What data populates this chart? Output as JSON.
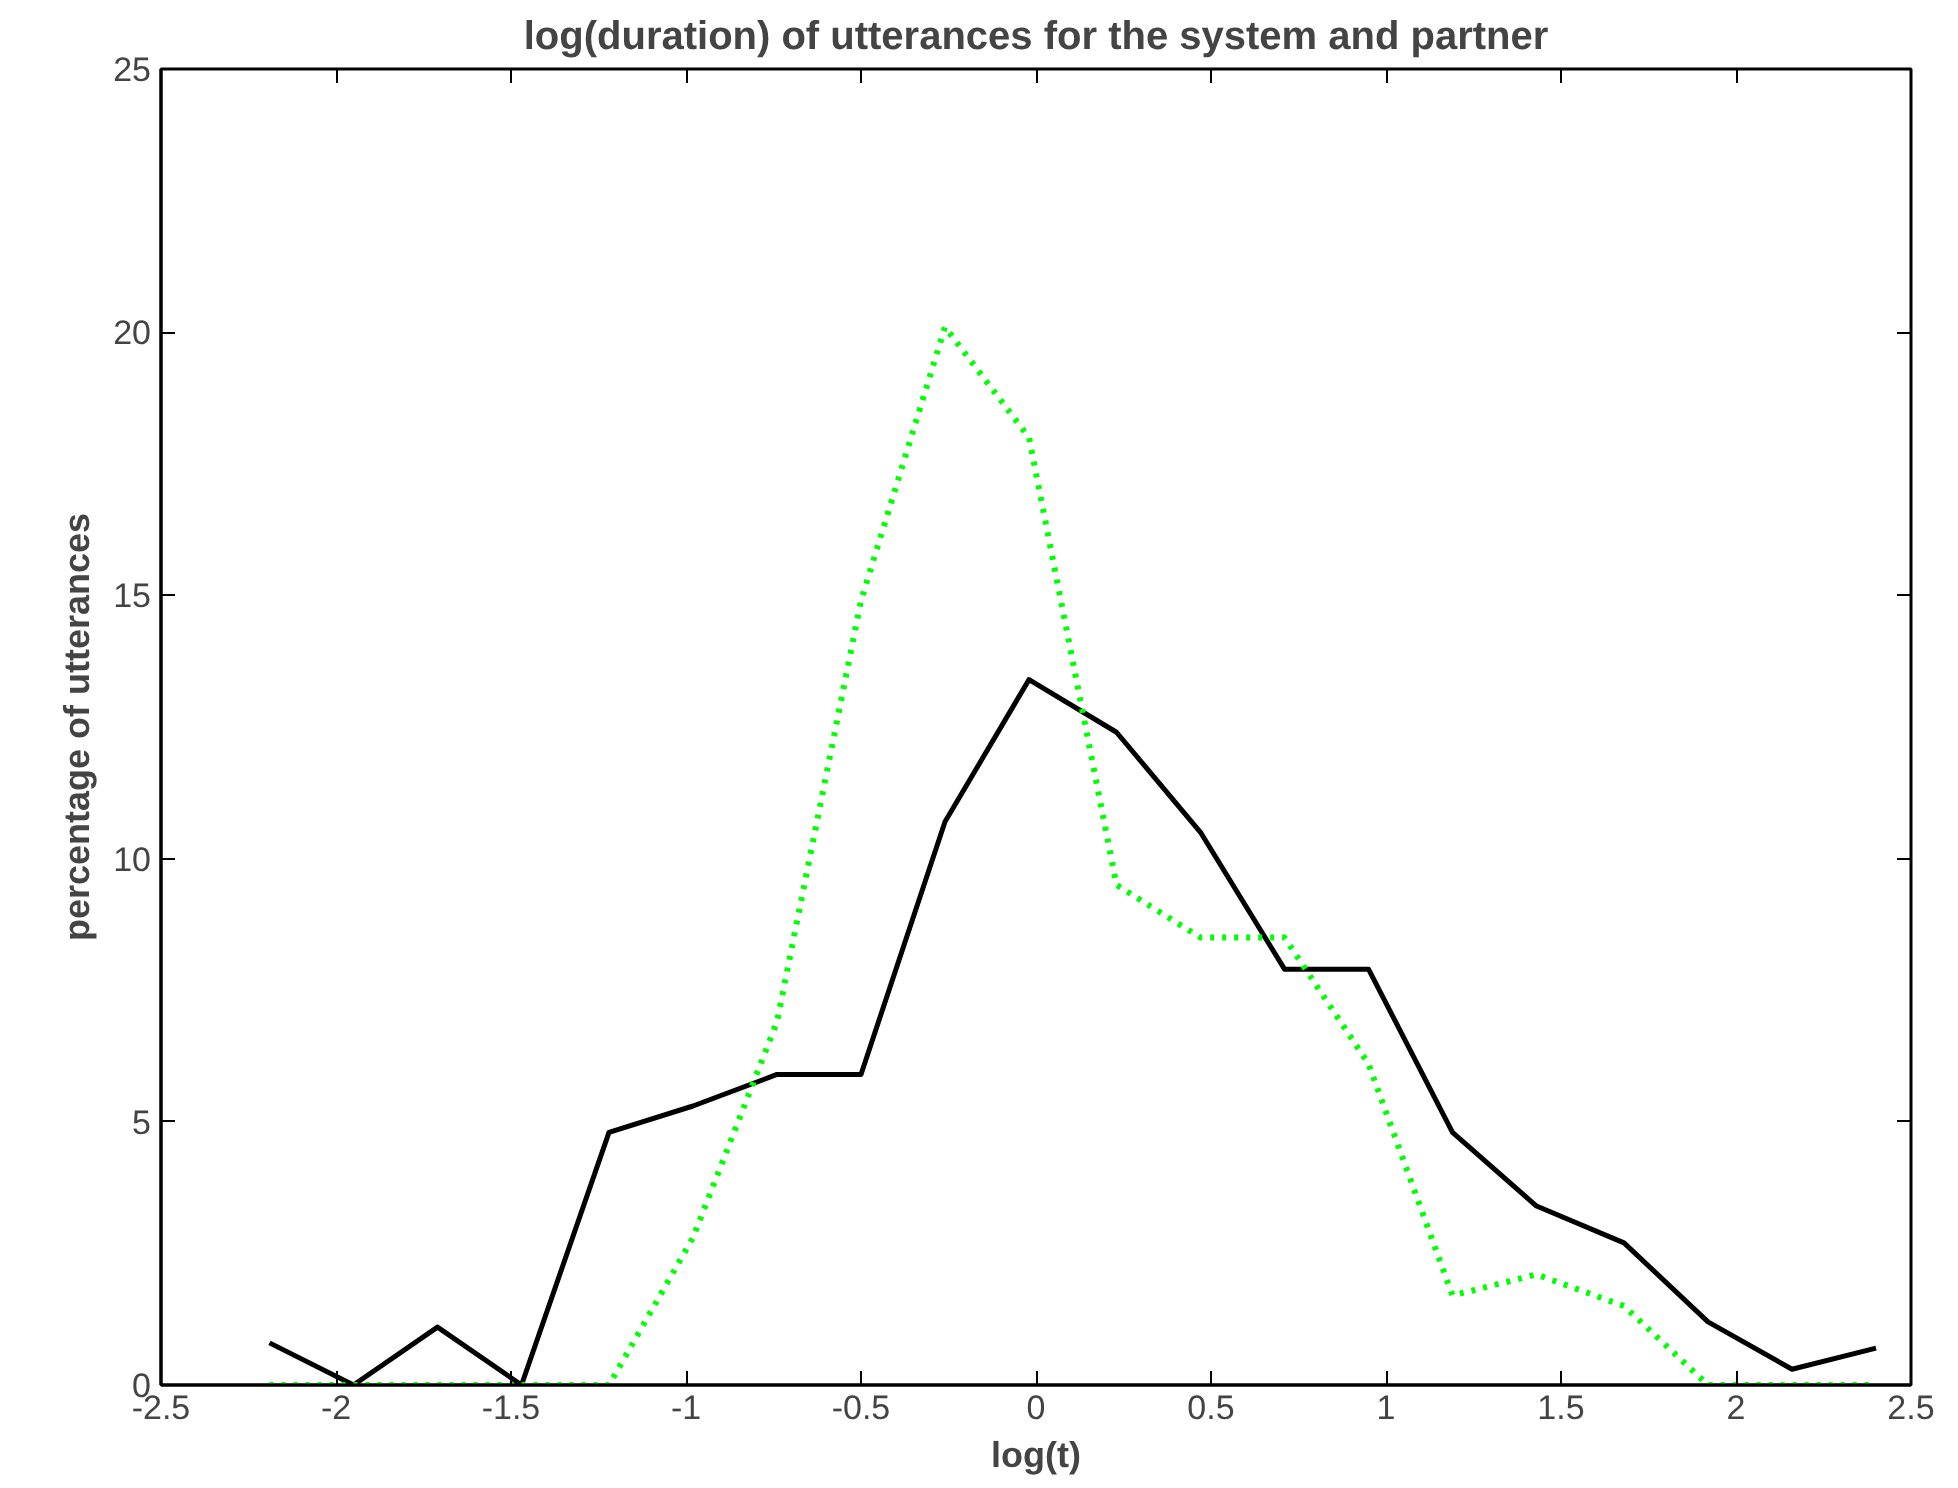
{
  "chart_data": {
    "type": "line",
    "title": "log(duration) of utterances for the system and partner",
    "xlabel": "log(t)",
    "ylabel": "percentage of utterances",
    "x": [
      -2.19,
      -1.95,
      -1.71,
      -1.47,
      -1.22,
      -0.98,
      -0.74,
      -0.5,
      -0.26,
      -0.02,
      0.23,
      0.47,
      0.71,
      0.95,
      1.19,
      1.43,
      1.68,
      1.92,
      2.16,
      2.4
    ],
    "series": [
      {
        "color": "#000000",
        "line_style": "solid",
        "values": [
          0.8,
          0,
          1.1,
          0,
          4.8,
          5.3,
          5.9,
          5.9,
          10.7,
          13.4,
          12.4,
          10.5,
          7.9,
          7.9,
          4.8,
          3.4,
          2.7,
          1.2,
          0.3,
          0.7
        ]
      },
      {
        "color": "#00ff00",
        "line_style": "dotted",
        "values": [
          0,
          0,
          0,
          0,
          0,
          2.8,
          6.9,
          14.9,
          20.1,
          18.0,
          9.5,
          8.5,
          8.5,
          6.1,
          1.7,
          2.1,
          1.5,
          0,
          0,
          0
        ]
      }
    ],
    "xlim": [
      -2.5,
      2.5
    ],
    "xticks": [
      -2.5,
      -2,
      -1.5,
      -1,
      -0.5,
      0,
      0.5,
      1,
      1.5,
      2,
      2.5
    ],
    "ylim": [
      0,
      25
    ],
    "yticks": [
      0,
      5,
      10,
      15,
      20,
      25
    ],
    "grid": false
  }
}
